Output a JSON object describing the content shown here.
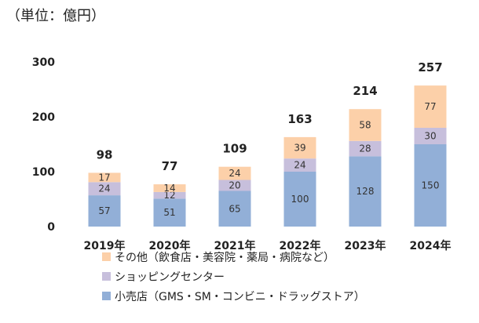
{
  "unit_label": "（単位：億円）",
  "chart_data": {
    "type": "bar",
    "stacked": true,
    "categories": [
      "2019年",
      "2020年",
      "2021年",
      "2022年",
      "2023年",
      "2024年"
    ],
    "ylim": [
      0,
      300
    ],
    "yticks": [
      "0",
      "100",
      "200",
      "300"
    ],
    "grid": false,
    "legend_placement": "bottom-left",
    "series": [
      {
        "name": "小売店（GMS・SM・コンビニ・ドラッグストア）",
        "color": "#92afd7",
        "values": [
          57,
          51,
          65,
          100,
          128,
          150
        ]
      },
      {
        "name": "ショッピングセンター",
        "color": "#c7bfdc",
        "values": [
          24,
          12,
          20,
          24,
          28,
          30
        ]
      },
      {
        "name": "その他（飲食店・美容院・薬局・病院など）",
        "color": "#fcd0a9",
        "values": [
          17,
          14,
          24,
          39,
          58,
          77
        ]
      }
    ],
    "totals": [
      98,
      77,
      109,
      163,
      214,
      257
    ]
  }
}
